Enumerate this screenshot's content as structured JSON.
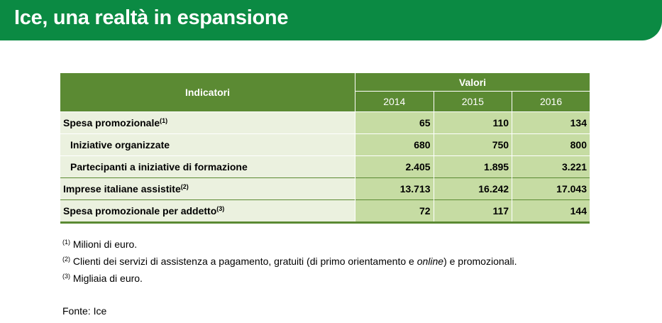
{
  "banner": {
    "title": "Ice, una realtà in espansione"
  },
  "table": {
    "header": {
      "indicators": "Indicatori",
      "values": "Valori",
      "years": [
        "2014",
        "2015",
        "2016"
      ]
    },
    "rows": [
      {
        "label": "Spesa promozionale",
        "note": "(1)",
        "values": [
          "65",
          "110",
          "134"
        ]
      },
      {
        "label": "Iniziative organizzate",
        "note": "",
        "values": [
          "680",
          "750",
          "800"
        ]
      },
      {
        "label": "Partecipanti a iniziative di formazione",
        "note": "",
        "values": [
          "2.405",
          "1.895",
          "3.221"
        ]
      },
      {
        "label": "Imprese italiane assistite",
        "note": "(2)",
        "values": [
          "13.713",
          "16.242",
          "17.043"
        ]
      },
      {
        "label": "Spesa promozionale per addetto",
        "note": "(3)",
        "values": [
          "72",
          "117",
          "144"
        ]
      }
    ]
  },
  "footnotes": [
    {
      "mark": "(1)",
      "text": "Milioni di euro."
    },
    {
      "mark": "(2)",
      "text_before": "Clienti dei servizi di assistenza a pagamento, gratuiti (di primo orientamento e ",
      "text_italic": "online",
      "text_after": ") e promozionali."
    },
    {
      "mark": "(3)",
      "text": "Migliaia di euro."
    }
  ],
  "source": "Fonte: Ice"
}
